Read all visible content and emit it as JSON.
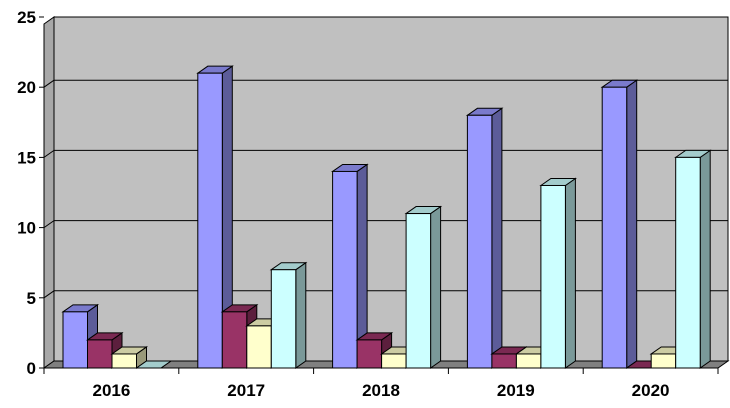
{
  "chart_data": {
    "type": "bar",
    "style": "3d-clustered-column",
    "title": "",
    "xlabel": "",
    "ylabel": "",
    "categories": [
      "2016",
      "2017",
      "2018",
      "2019",
      "2020"
    ],
    "series": [
      {
        "values": [
          4,
          21,
          14,
          18,
          20
        ],
        "color": "#9999ff"
      },
      {
        "values": [
          2,
          4,
          2,
          1,
          0
        ],
        "color": "#993366"
      },
      {
        "values": [
          1,
          3,
          1,
          1,
          1
        ],
        "color": "#ffffcc"
      },
      {
        "values": [
          0,
          7,
          11,
          13,
          15
        ],
        "color": "#ccffff"
      }
    ],
    "ylim": [
      0,
      25
    ],
    "yticks": [
      "0",
      "5",
      "10",
      "15",
      "20",
      "25"
    ],
    "grid": true,
    "legend": "none",
    "wall_color": "#c0c0c0",
    "floor_color": "#808080"
  }
}
